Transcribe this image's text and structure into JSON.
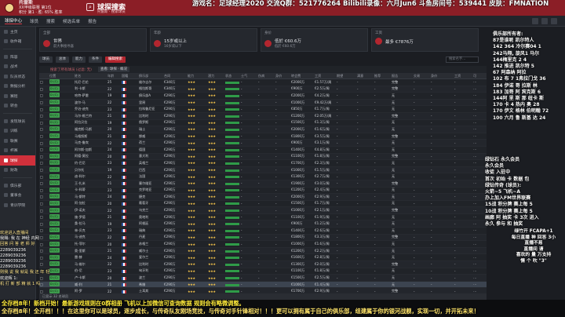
{
  "header": {
    "club_name": "托雷斯",
    "club_sub": "XX甲级联赛 第1位",
    "club_extra": "积分 第1 · 胜: 65% 胜率",
    "page_title": "球探搜索",
    "page_sub": "托雷斯 · 搜索球员"
  },
  "overlay_top": "游戏名：足球经理2020 交流Q群：521776264 Bilibili录像：六月Jun6 斗鱼房间号：539441 皮肤：FMNATION",
  "navbar": {
    "items": [
      "球探中心",
      "球员",
      "搜索",
      "候选名单",
      "报告"
    ]
  },
  "sidebar": {
    "items": [
      "主页",
      "收件箱",
      "阵容",
      "战术",
      "队员状态",
      "数据分析",
      "赛程",
      "转会",
      "发现球员",
      "训练",
      "联赛",
      "杯赛",
      "球探",
      "财政",
      "俱乐部",
      "董事会",
      "青训学院"
    ]
  },
  "cards": [
    {
      "label": "全部",
      "value": "世界",
      "sub": "前大事搜寻器"
    },
    {
      "label": "年龄",
      "value": "15岁或以上",
      "sub": "16岁或以下"
    },
    {
      "label": "身价",
      "value": "低於 €60.6万",
      "sub": "低於 €60.6万"
    },
    {
      "label": "工资",
      "value": "最多 €7876万",
      "sub": ""
    }
  ],
  "filters": {
    "chips": [
      "球员",
      "总体",
      "能力",
      "条件"
    ],
    "active_chip": "编辑搜索",
    "search_placeholder": "搜索名字..."
  },
  "table": {
    "subbar_label": "搜索了所有球员 (过滤: 无)",
    "subbar_btn": "查看: 球探 · 概况",
    "columns": [
      "",
      "位置",
      "姓名",
      "年龄",
      "国籍",
      "俱乐部",
      "合同",
      "能力",
      "潜力",
      "状态",
      "士气",
      "伤病",
      "身价",
      "转会费",
      "工资",
      "期望",
      "满意",
      "推荐",
      "报告",
      "交易",
      "身价",
      "工资",
      "可"
    ],
    "rows": [
      {
        "pos": "D (C)",
        "type": "d",
        "name": "托尼-巴伦",
        "age": "25",
        "club": "维尔吉尔",
        "contract": "€340万",
        "fee": "€2000万",
        "wage": "€1.57万/周",
        "report": "完整"
      },
      {
        "pos": "D (C)",
        "type": "d",
        "name": "利-卡斯",
        "age": "22",
        "club": "格拉斯哥",
        "contract": "€340万",
        "fee": "€900万",
        "wage": "€2.5万/周",
        "report": "完整"
      },
      {
        "pos": "D (C)",
        "type": "d",
        "name": "哈特-萨雷",
        "age": "19",
        "club": "俱乐部A",
        "contract": "€290万",
        "fee": "€2000万",
        "wage": "€4.2万/周",
        "report": "无"
      },
      {
        "pos": "D (C)",
        "type": "d",
        "name": "波尔-马",
        "age": "22",
        "club": "里昂",
        "contract": "€290万",
        "fee": "€1000万",
        "wage": "€9.42万/周",
        "report": "无"
      },
      {
        "pos": "D (C)",
        "type": "d",
        "name": "乔治-迪克",
        "age": "23",
        "club": "拉科鲁尼亚",
        "contract": "€290万",
        "fee": "€850万",
        "wage": "€1.7万/周",
        "report": "无"
      },
      {
        "pos": "D (C)",
        "type": "d",
        "name": "马尔-格兰特",
        "age": "21",
        "club": "比利时",
        "contract": "€290万",
        "fee": "€1200万",
        "wage": "€2.05万/周",
        "report": "完整"
      },
      {
        "pos": "D (C)",
        "type": "d",
        "name": "阿拉贝拉",
        "age": "19",
        "club": "俄罗斯",
        "contract": "€290万",
        "fee": "€1500万",
        "wage": "€1.3万/周",
        "report": "无"
      },
      {
        "pos": "D (C)",
        "type": "d",
        "name": "福克斯-马斯",
        "age": "20",
        "club": "瑞士",
        "contract": "€290万",
        "fee": "€2000万",
        "wage": "€1.6万/周",
        "report": "无"
      },
      {
        "pos": "D (C)",
        "type": "d",
        "name": "马格努斯",
        "age": "21",
        "club": "挪威",
        "contract": "€290万",
        "fee": "€1800万",
        "wage": "€3.5万/周",
        "report": "完整"
      },
      {
        "pos": "D (C)",
        "type": "d",
        "name": "马克-鲁宾",
        "age": "22",
        "club": "荷兰",
        "contract": "€290万",
        "fee": "€900万",
        "wage": "€3.1万/周",
        "report": "无"
      },
      {
        "pos": "D (C)",
        "type": "d",
        "name": "阿尔斯-加斯",
        "age": "24",
        "club": "德国",
        "contract": "€290万",
        "fee": "€1400万",
        "wage": "€4.8万/周",
        "report": "无"
      },
      {
        "pos": "D (C)",
        "type": "d",
        "name": "阿德-莫拉",
        "age": "20",
        "club": "意大利",
        "contract": "€290万",
        "fee": "€1100万",
        "wage": "€1.8万/周",
        "report": "完整"
      },
      {
        "pos": "D (C)",
        "type": "d",
        "name": "约-巴尼",
        "age": "23",
        "club": "英格兰",
        "contract": "€290万",
        "fee": "€1700万",
        "wage": "€2.3万/周",
        "report": "无"
      },
      {
        "pos": "D (C)",
        "type": "d",
        "name": "贝尔托",
        "age": "19",
        "club": "巴西",
        "contract": "€290万",
        "fee": "€1000万",
        "wage": "€1.5万/周",
        "report": "无"
      },
      {
        "pos": "D (C)",
        "type": "d",
        "name": "迪-科尔",
        "age": "22",
        "club": "法国",
        "contract": "€290万",
        "fee": "€1300万",
        "wage": "€2.7万/周",
        "report": "无"
      },
      {
        "pos": "D (C)",
        "type": "d",
        "name": "王-扎米",
        "age": "21",
        "club": "塞尔维亚",
        "contract": "€290万",
        "fee": "€1900万",
        "wage": "€3.0万/周",
        "report": "完整"
      },
      {
        "pos": "D (C)",
        "type": "d",
        "name": "卡-科蒂",
        "age": "23",
        "club": "克罗地亚",
        "contract": "€290万",
        "fee": "€1200万",
        "wage": "€2.4万/周",
        "report": "无"
      },
      {
        "pos": "D (C)",
        "type": "d",
        "name": "马-斯特",
        "age": "24",
        "club": "捷克",
        "contract": "€290万",
        "fee": "€2000万",
        "wage": "€2.9万/周",
        "report": "无"
      },
      {
        "pos": "D (C)",
        "type": "d",
        "name": "阿-加拉",
        "age": "20",
        "club": "葡萄牙",
        "contract": "€290万",
        "fee": "€1500万",
        "wage": "€1.7万/周",
        "report": "无"
      },
      {
        "pos": "D (C)",
        "type": "d",
        "name": "伊-诺夫",
        "age": "22",
        "club": "乌克兰",
        "contract": "€290万",
        "fee": "€1000万",
        "wage": "€2.1万/周",
        "report": "完整"
      },
      {
        "pos": "D (C)",
        "type": "d",
        "name": "施-罗德",
        "age": "21",
        "club": "奥地利",
        "contract": "€290万",
        "fee": "€1100万",
        "wage": "€1.9万/周",
        "report": "无"
      },
      {
        "pos": "D (C)",
        "type": "d",
        "name": "桑-拉马",
        "age": "19",
        "club": "阿根廷",
        "contract": "€290万",
        "fee": "€900万",
        "wage": "€1.2万/周",
        "report": "无"
      },
      {
        "pos": "D (C)",
        "type": "d",
        "name": "林-贝克",
        "age": "23",
        "club": "瑞典",
        "contract": "€290万",
        "fee": "€1400万",
        "wage": "€2.6万/周",
        "report": "无"
      },
      {
        "pos": "D (C)",
        "type": "d",
        "name": "马-迪克",
        "age": "22",
        "club": "丹麦",
        "contract": "€290万",
        "fee": "€1800万",
        "wage": "€3.3万/周",
        "report": "完整"
      },
      {
        "pos": "D (C)",
        "type": "d",
        "name": "托-菲尔",
        "age": "20",
        "club": "苏格兰",
        "contract": "€290万",
        "fee": "€1000万",
        "wage": "€1.6万/周",
        "report": "无"
      },
      {
        "pos": "D (C)",
        "type": "d",
        "name": "奥-里斯",
        "age": "21",
        "club": "威尔士",
        "contract": "€290万",
        "fee": "€1200万",
        "wage": "€2.2万/周",
        "report": "无"
      },
      {
        "pos": "D (C)",
        "type": "d",
        "name": "雷-赫",
        "age": "24",
        "club": "爱尔兰",
        "contract": "€290万",
        "fee": "€1600万",
        "wage": "€2.8万/周",
        "report": "无"
      },
      {
        "pos": "D (C)",
        "type": "d",
        "name": "马-维尔",
        "age": "22",
        "club": "比利时",
        "contract": "€290万",
        "fee": "€1300万",
        "wage": "€2.0万/周",
        "report": "完整"
      },
      {
        "pos": "D (C)",
        "type": "d",
        "name": "伯-尼",
        "age": "23",
        "club": "匈牙利",
        "contract": "€290万",
        "fee": "€1100万",
        "wage": "€1.8万/周",
        "report": "无"
      },
      {
        "pos": "D (C)",
        "type": "d",
        "name": "卢-卡斯",
        "age": "20",
        "club": "波兰",
        "contract": "€290万",
        "fee": "€1500万",
        "wage": "€2.5万/周",
        "report": "无"
      },
      {
        "pos": "D (C)",
        "type": "d",
        "name": "威-利",
        "age": "21",
        "club": "希腊",
        "contract": "€290万",
        "fee": "€1000万",
        "wage": "€1.4万/周",
        "report": "无"
      },
      {
        "pos": "D (C)",
        "type": "d",
        "name": "阿-罗",
        "age": "22",
        "club": "土耳其",
        "contract": "€290万",
        "fee": "€1700万",
        "wage": "€2.9万/周",
        "report": "完整"
      }
    ],
    "selected_row": 30
  },
  "status_line": "已显示 32 名球员",
  "side_overlay": [
    "俱乐部所有者:",
    "87是谁呢 凯尔特人",
    "142 364  冷尔赛04 1",
    "242马翔, 旋风1 马尔",
    "144梅里克 2 4",
    "142 推进 凯尔特 5",
    "67 阿森纳 阿拉",
    "102 布 7 1弗拉门戈 36",
    "184 伊诺 哥 拉斯 林",
    "183 加哥 阿 宾克斯 6",
    "144阿 里 斯 那 纽卡 斯",
    "170 卡 4 热内 奥 28",
    "170 伊文 格林 伯明翰 72",
    "100 六月 鲁 斯基 达 24"
  ],
  "side_overlay2": [
    "绿钻石 永久会员",
    "永久会员",
    "收徒 入驻中",
    "首次 初始 卡 数据 包",
    "",
    "绿钻传奇 (球员):",
    "火箭~5 飞机~A",
    "办上加入FM世界联赛",
    "15战 积分牌 赛上每 5",
    "10战 积分牌 赛上每 5",
    "画廊 阿 抽奖 卡 3次 进入",
    "永久 参与 和 抽奖"
  ],
  "side_overlay3": [
    "绿竹开 FCAPA+1",
    "每日直播 神 回答 3小",
    "",
    "直播不易",
    "直播间 请",
    "喜欢的 量 万支持",
    "情 个 吹 \"3\""
  ],
  "chat": [
    {
      "t": "欢迎进入直播间",
      "w": false
    },
    {
      "t": "我赐: 我 在 神经 内网",
      "w": true
    },
    {
      "t": "回答 问 答 老 师 好",
      "w": false
    },
    {
      "t": "2289039236",
      "w": true
    },
    {
      "t": "2289039236",
      "w": true
    },
    {
      "t": "2289039236",
      "w": true
    },
    {
      "t": "2289039236",
      "w": true
    },
    {
      "t": "则我 说 我 就是 我 还 年 轻",
      "w": false
    },
    {
      "t": "欢迎辉 1:",
      "w": true
    },
    {
      "t": "机 打 新 部 精 就 1 吗",
      "w": false
    }
  ],
  "ticker": [
    "全存档8年！新档开始！最新游戏规则在0群相册 飞机以上加微信可查询数据 规则会有略微调整。",
    "全存档8年！全开档！！！在这里你可以是球员，逐步成长，与传奇队友刚场竞技，与传奇对手针锋相对！！！更可以拥有属于自己的俱乐部，组建属于你的银河战舰，实现一切，并开拓未来！"
  ]
}
